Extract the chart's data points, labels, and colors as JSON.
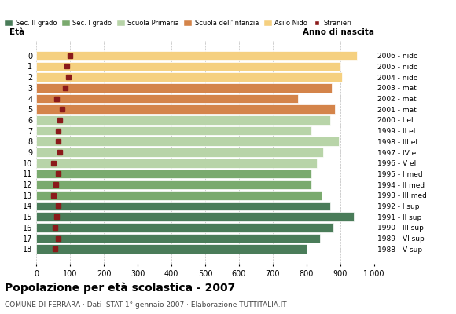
{
  "ages": [
    18,
    17,
    16,
    15,
    14,
    13,
    12,
    11,
    10,
    9,
    8,
    7,
    6,
    5,
    4,
    3,
    2,
    1,
    0
  ],
  "years": [
    "1988 - V sup",
    "1989 - VI sup",
    "1990 - III sup",
    "1991 - II sup",
    "1992 - I sup",
    "1993 - III med",
    "1994 - II med",
    "1995 - I med",
    "1996 - V el",
    "1997 - IV el",
    "1998 - III el",
    "1999 - II el",
    "2000 - I el",
    "2001 - mat",
    "2002 - mat",
    "2003 - mat",
    "2004 - nido",
    "2005 - nido",
    "2006 - nido"
  ],
  "values": [
    800,
    840,
    880,
    940,
    870,
    845,
    815,
    815,
    830,
    850,
    895,
    815,
    870,
    885,
    775,
    875,
    905,
    900,
    950
  ],
  "stranieri": [
    55,
    65,
    55,
    60,
    65,
    50,
    58,
    65,
    50,
    70,
    65,
    65,
    70,
    75,
    60,
    85,
    95,
    90,
    100
  ],
  "categories": {
    "sec2": [
      18,
      17,
      16,
      15,
      14
    ],
    "sec1": [
      13,
      12,
      11
    ],
    "primaria": [
      10,
      9,
      8,
      7,
      6
    ],
    "infanzia": [
      5,
      4,
      3
    ],
    "nido": [
      2,
      1,
      0
    ]
  },
  "colors": {
    "sec2": "#4a7c59",
    "sec1": "#7aaa6e",
    "primaria": "#b8d4a8",
    "infanzia": "#d4844a",
    "nido": "#f5d080",
    "stranieri": "#8b1a1a"
  },
  "legend_labels": [
    "Sec. II grado",
    "Sec. I grado",
    "Scuola Primaria",
    "Scuola dell'Infanzia",
    "Asilo Nido",
    "Stranieri"
  ],
  "title": "Popolazione per età scolastica - 2007",
  "subtitle": "COMUNE DI FERRARA · Dati ISTAT 1° gennaio 2007 · Elaborazione TUTTITALIA.IT",
  "xlabel_eta": "Età",
  "xlabel_anno": "Anno di nascita",
  "xlim": [
    0,
    1000
  ],
  "xticks": [
    "0",
    "100",
    "200",
    "300",
    "400",
    "500",
    "600",
    "700",
    "800",
    "900",
    "1.000"
  ],
  "xtick_values": [
    0,
    100,
    200,
    300,
    400,
    500,
    600,
    700,
    800,
    900,
    1000
  ],
  "background_color": "#ffffff",
  "grid_color": "#bbbbbb"
}
